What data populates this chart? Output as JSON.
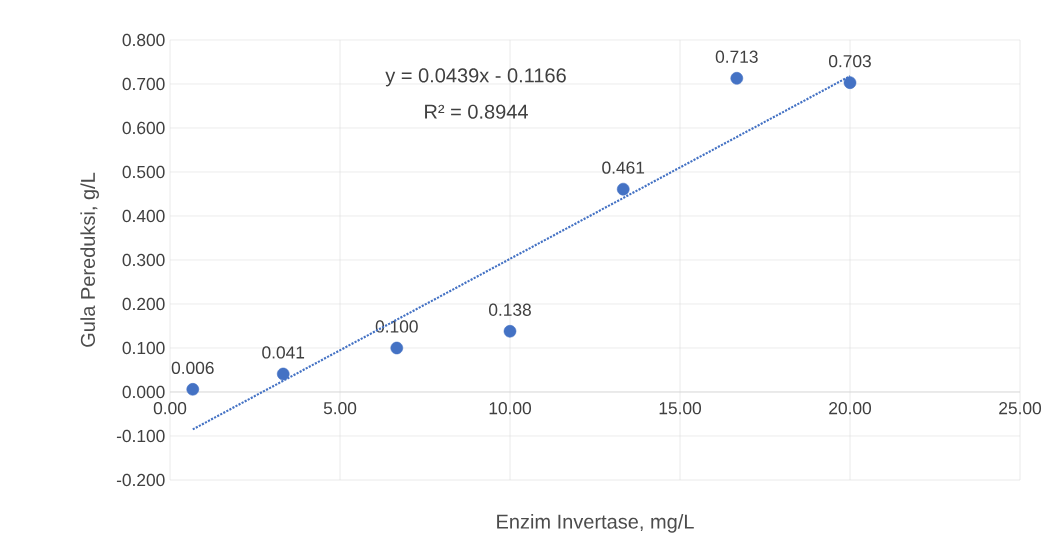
{
  "chart_data": {
    "type": "scatter",
    "xlabel": "Enzim Invertase, mg/L",
    "ylabel": "Gula Pereduksi, g/L",
    "x": [
      0.67,
      3.33,
      6.67,
      10,
      13.33,
      16.67,
      20
    ],
    "series": [
      {
        "color": "#4472c4",
        "marker": "circle",
        "values": [
          0.006,
          0.041,
          0.1,
          0.138,
          0.461,
          0.713,
          0.703
        ],
        "value_labels": [
          "0.006",
          "0.041",
          "0.100",
          "0.138",
          "0.461",
          "0.713",
          "0.703"
        ]
      },
      {
        "type": "line",
        "color": "#4472c4",
        "marker": "none",
        "line_style": "dotted",
        "x": [
          0.67,
          20
        ],
        "values": [
          -0.085,
          0.718
        ]
      }
    ],
    "annotations": [
      "y = 0.0439x - 0.1166",
      "R² = 0.8944"
    ],
    "xlim": [
      0,
      25
    ],
    "ylim": [
      -0.2,
      0.8
    ],
    "xticks": [
      {
        "value": 0,
        "label": "0.00"
      },
      {
        "value": 5,
        "label": "5.00"
      },
      {
        "value": 10,
        "label": "10.00"
      },
      {
        "value": 15,
        "label": "15.00"
      },
      {
        "value": 20,
        "label": "20.00"
      },
      {
        "value": 25,
        "label": "25.00"
      }
    ],
    "yticks": [
      {
        "value": -0.2,
        "label": "-0.200"
      },
      {
        "value": -0.1,
        "label": "-0.100"
      },
      {
        "value": 0,
        "label": "0.000"
      },
      {
        "value": 0.1,
        "label": "0.100"
      },
      {
        "value": 0.2,
        "label": "0.200"
      },
      {
        "value": 0.3,
        "label": "0.300"
      },
      {
        "value": 0.4,
        "label": "0.400"
      },
      {
        "value": 0.5,
        "label": "0.500"
      },
      {
        "value": 0.6,
        "label": "0.600"
      },
      {
        "value": 0.7,
        "label": "0.700"
      },
      {
        "value": 0.8,
        "label": "0.800"
      }
    ],
    "grid": true
  }
}
